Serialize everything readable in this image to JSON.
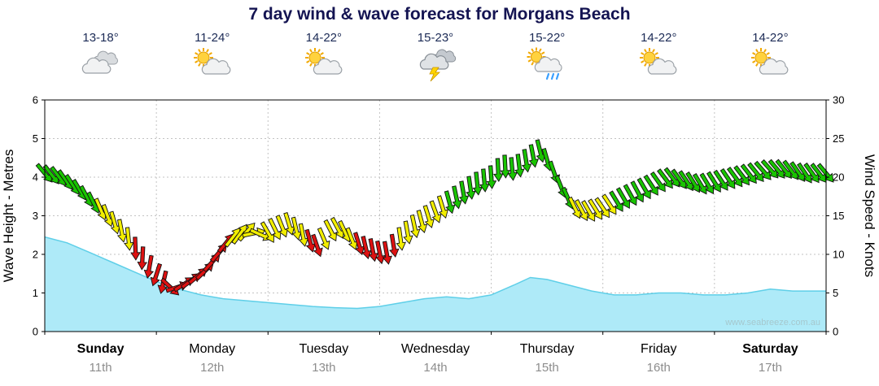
{
  "title": "7 day wind & wave forecast for Morgans Beach",
  "watermark": "www.seabreeze.com.au",
  "days": [
    {
      "name": "Sunday",
      "date": "11th",
      "temp": "13-18°",
      "icon": "cloudy",
      "weekend": true
    },
    {
      "name": "Monday",
      "date": "12th",
      "temp": "11-24°",
      "icon": "partly-cloudy",
      "weekend": false
    },
    {
      "name": "Tuesday",
      "date": "13th",
      "temp": "14-22°",
      "icon": "partly-cloudy",
      "weekend": false
    },
    {
      "name": "Wednesday",
      "date": "14th",
      "temp": "15-23°",
      "icon": "thunderstorm",
      "weekend": false
    },
    {
      "name": "Thursday",
      "date": "15th",
      "temp": "15-22°",
      "icon": "sun-shower",
      "weekend": false
    },
    {
      "name": "Friday",
      "date": "16th",
      "temp": "14-22°",
      "icon": "partly-cloudy",
      "weekend": false
    },
    {
      "name": "Saturday",
      "date": "17th",
      "temp": "14-22°",
      "icon": "partly-cloudy",
      "weekend": true
    }
  ],
  "chart_data": {
    "type": "area+quiver",
    "x_unit": "days",
    "x_range": [
      0,
      7
    ],
    "grid": true,
    "left_axis": {
      "label": "Wave Height - Metres",
      "range": [
        0,
        6
      ],
      "ticks": [
        0,
        1,
        2,
        3,
        4,
        5,
        6
      ]
    },
    "right_axis": {
      "label": "Wind Speed - Knots",
      "range": [
        0,
        30
      ],
      "ticks": [
        0,
        5,
        10,
        15,
        20,
        25,
        30
      ]
    },
    "wave_height_m": [
      [
        0,
        2.45
      ],
      [
        0.2,
        2.3
      ],
      [
        0.4,
        2.05
      ],
      [
        0.6,
        1.8
      ],
      [
        0.8,
        1.55
      ],
      [
        1.0,
        1.3
      ],
      [
        1.2,
        1.1
      ],
      [
        1.4,
        0.95
      ],
      [
        1.6,
        0.85
      ],
      [
        1.8,
        0.8
      ],
      [
        2.0,
        0.75
      ],
      [
        2.2,
        0.7
      ],
      [
        2.4,
        0.65
      ],
      [
        2.6,
        0.62
      ],
      [
        2.8,
        0.6
      ],
      [
        3.0,
        0.65
      ],
      [
        3.2,
        0.75
      ],
      [
        3.4,
        0.85
      ],
      [
        3.6,
        0.9
      ],
      [
        3.8,
        0.85
      ],
      [
        4.0,
        0.95
      ],
      [
        4.2,
        1.2
      ],
      [
        4.35,
        1.4
      ],
      [
        4.5,
        1.35
      ],
      [
        4.7,
        1.2
      ],
      [
        4.9,
        1.05
      ],
      [
        5.1,
        0.95
      ],
      [
        5.3,
        0.95
      ],
      [
        5.5,
        1.0
      ],
      [
        5.7,
        1.0
      ],
      [
        5.9,
        0.95
      ],
      [
        6.1,
        0.95
      ],
      [
        6.3,
        1.0
      ],
      [
        6.5,
        1.1
      ],
      [
        6.7,
        1.05
      ],
      [
        6.9,
        1.05
      ],
      [
        7.0,
        1.05
      ]
    ],
    "wind": {
      "sample_step_days": 0.0625,
      "speed_knots_waypoints": [
        [
          0,
          20.5
        ],
        [
          0.15,
          20
        ],
        [
          0.3,
          18.5
        ],
        [
          0.45,
          16.5
        ],
        [
          0.6,
          14.5
        ],
        [
          0.75,
          12
        ],
        [
          0.9,
          9
        ],
        [
          1.05,
          6.5
        ],
        [
          1.15,
          5.5
        ],
        [
          1.3,
          6.5
        ],
        [
          1.45,
          8
        ],
        [
          1.55,
          10
        ],
        [
          1.65,
          12
        ],
        [
          1.8,
          13
        ],
        [
          1.95,
          12.5
        ],
        [
          2.1,
          13.5
        ],
        [
          2.2,
          14
        ],
        [
          2.35,
          12
        ],
        [
          2.45,
          11
        ],
        [
          2.55,
          13
        ],
        [
          2.65,
          13.5
        ],
        [
          2.75,
          12
        ],
        [
          2.85,
          11
        ],
        [
          2.95,
          10.5
        ],
        [
          3.05,
          10
        ],
        [
          3.15,
          11.5
        ],
        [
          3.3,
          13.5
        ],
        [
          3.45,
          15
        ],
        [
          3.55,
          16
        ],
        [
          3.7,
          17.5
        ],
        [
          3.85,
          19
        ],
        [
          4.0,
          20
        ],
        [
          4.1,
          21.5
        ],
        [
          4.2,
          21
        ],
        [
          4.3,
          22
        ],
        [
          4.45,
          23.5
        ],
        [
          4.55,
          21
        ],
        [
          4.65,
          18
        ],
        [
          4.75,
          16
        ],
        [
          4.85,
          15.5
        ],
        [
          5.0,
          16
        ],
        [
          5.15,
          17
        ],
        [
          5.3,
          18
        ],
        [
          5.45,
          19
        ],
        [
          5.6,
          20
        ],
        [
          5.75,
          19.5
        ],
        [
          5.9,
          19
        ],
        [
          6.05,
          19.5
        ],
        [
          6.2,
          20
        ],
        [
          6.35,
          20.5
        ],
        [
          6.5,
          21
        ],
        [
          6.65,
          21
        ],
        [
          6.8,
          20.5
        ],
        [
          7.0,
          20.5
        ]
      ],
      "direction_deg_waypoints": [
        [
          0,
          140
        ],
        [
          0.3,
          148
        ],
        [
          0.6,
          162
        ],
        [
          0.9,
          185
        ],
        [
          1.05,
          205
        ],
        [
          1.2,
          60
        ],
        [
          1.5,
          42
        ],
        [
          1.8,
          35
        ],
        [
          2.0,
          150
        ],
        [
          2.3,
          170
        ],
        [
          2.6,
          150
        ],
        [
          2.9,
          168
        ],
        [
          3.2,
          172
        ],
        [
          3.5,
          160
        ],
        [
          3.8,
          172
        ],
        [
          4.1,
          178
        ],
        [
          4.4,
          168
        ],
        [
          4.7,
          155
        ],
        [
          5.0,
          146
        ],
        [
          5.3,
          152
        ],
        [
          5.6,
          142
        ],
        [
          5.9,
          150
        ],
        [
          6.2,
          144
        ],
        [
          6.5,
          138
        ],
        [
          6.8,
          146
        ],
        [
          7.0,
          140
        ]
      ],
      "thresholds_knots": {
        "moderate": 12,
        "fresh": 16.5
      }
    },
    "palette": {
      "grid": "#c3c3c3",
      "axis": "#000000",
      "wave_fill": "#aeeaf8",
      "wave_line": "#5fcfe8",
      "wind_light": "#dd1111",
      "wind_moderate": "#f2ee00",
      "wind_fresh": "#19c400",
      "arrow_outline": "#111111",
      "watermark": "#a5c8ce",
      "title": "#141452",
      "date_label": "#8d8d8d"
    }
  }
}
